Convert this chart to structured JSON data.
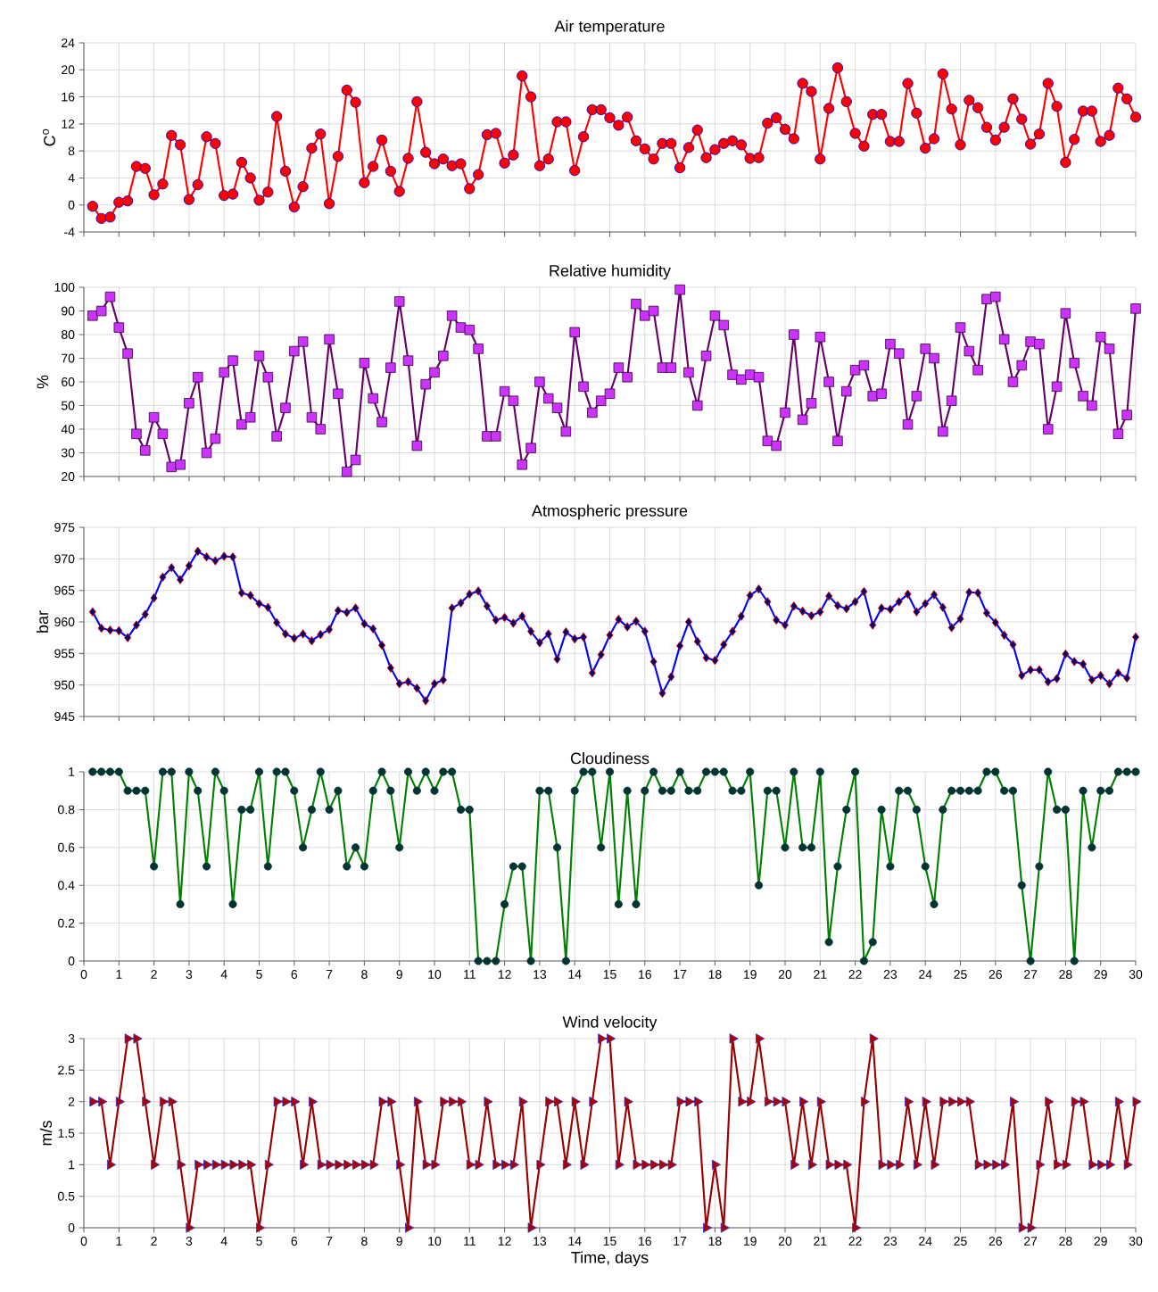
{
  "chart_data": [
    {
      "type": "line",
      "title": "Air temperature",
      "ylabel": "C$^{o}$",
      "grid": true,
      "marker": "circle",
      "tick_labels": "y",
      "x": [
        0.25,
        0.5,
        0.75,
        1,
        1.25,
        1.5,
        1.75,
        2,
        2.25,
        2.5,
        2.75,
        3,
        3.25,
        3.5,
        3.75,
        4,
        4.25,
        4.5,
        4.75,
        5,
        5.25,
        5.5,
        5.75,
        6,
        6.25,
        6.5,
        6.75,
        7,
        7.25,
        7.5,
        7.75,
        8,
        8.25,
        8.5,
        8.75,
        9,
        9.25,
        9.5,
        9.75,
        10,
        10.25,
        10.5,
        10.75,
        11,
        11.25,
        11.5,
        11.75,
        12,
        12.25,
        12.5,
        12.75,
        13,
        13.25,
        13.5,
        13.75,
        14,
        14.25,
        14.5,
        14.75,
        15,
        15.25,
        15.5,
        15.75,
        16,
        16.25,
        16.5,
        16.75,
        17,
        17.25,
        17.5,
        17.75,
        18,
        18.25,
        18.5,
        18.75,
        19,
        19.25,
        19.5,
        19.75,
        20,
        20.25,
        20.5,
        20.75,
        21,
        21.25,
        21.5,
        21.75,
        22,
        22.25,
        22.5,
        22.75,
        23,
        23.25,
        23.5,
        23.75,
        24,
        24.25,
        24.5,
        24.75,
        25,
        25.25,
        25.5,
        25.75,
        26,
        26.25,
        26.5,
        26.75,
        27,
        27.25,
        27.5,
        27.75,
        28,
        28.25,
        28.5,
        28.75,
        29,
        29.25,
        29.5,
        29.75,
        30
      ],
      "xlim": [
        0,
        30
      ],
      "xticks": [
        0,
        1,
        2,
        3,
        4,
        5,
        6,
        7,
        8,
        9,
        10,
        11,
        12,
        13,
        14,
        15,
        16,
        17,
        18,
        19,
        20,
        21,
        22,
        23,
        24,
        25,
        26,
        27,
        28,
        29,
        30
      ],
      "ylim": [
        -4,
        24
      ],
      "yticks": [
        -4,
        0,
        4,
        8,
        12,
        16,
        20,
        24
      ],
      "series": [
        {
          "color": "#ff0000",
          "values": [
            -0.2,
            -2,
            -1.8,
            0.4,
            0.6,
            5.7,
            5.4,
            1.5,
            3.1,
            10.3,
            8.9,
            0.8,
            3.0,
            10.1,
            9.1,
            1.4,
            1.6,
            6.3,
            4.0,
            0.7,
            1.9,
            13.1,
            5.0,
            -0.3,
            2.7,
            8.4,
            10.5,
            0.2,
            7.2,
            17.0,
            15.2,
            3.3,
            5.7,
            9.6,
            5.0,
            2.0,
            6.9,
            15.3,
            7.8,
            6.1,
            6.8,
            5.8,
            6.1,
            2.4,
            4.5,
            10.4,
            10.6,
            6.2,
            7.4,
            19.1,
            16.0,
            5.8,
            6.8,
            12.3,
            12.3,
            5.1,
            10.1,
            14.1,
            14.1,
            12.9,
            11.8,
            13.0,
            9.5,
            8.3,
            6.8,
            9.1,
            9.1,
            5.5,
            8.5,
            11.1,
            7.0,
            8.2,
            9.1,
            9.5,
            8.9,
            6.9,
            7.0,
            12.1,
            12.9,
            11.2,
            9.8,
            18.0,
            16.8,
            6.8,
            14.3,
            20.3,
            15.3,
            10.6,
            8.7,
            13.4,
            13.4,
            9.4,
            9.4,
            18.0,
            13.6,
            8.4,
            9.8,
            19.4,
            14.2,
            8.9,
            15.5,
            14.4,
            11.5,
            9.6,
            11.5,
            15.7,
            12.7,
            9.0,
            10.5,
            18.0,
            14.6,
            6.3,
            9.7,
            13.9,
            13.9,
            9.4,
            10.3,
            17.3,
            15.7,
            13.0
          ]
        }
      ]
    },
    {
      "type": "line",
      "title": "Relative humidity",
      "ylabel": "%",
      "grid": true,
      "marker": "square",
      "tick_labels": "y",
      "x": [
        0.25,
        0.5,
        0.75,
        1,
        1.25,
        1.5,
        1.75,
        2,
        2.25,
        2.5,
        2.75,
        3,
        3.25,
        3.5,
        3.75,
        4,
        4.25,
        4.5,
        4.75,
        5,
        5.25,
        5.5,
        5.75,
        6,
        6.25,
        6.5,
        6.75,
        7,
        7.25,
        7.5,
        7.75,
        8,
        8.25,
        8.5,
        8.75,
        9,
        9.25,
        9.5,
        9.75,
        10,
        10.25,
        10.5,
        10.75,
        11,
        11.25,
        11.5,
        11.75,
        12,
        12.25,
        12.5,
        12.75,
        13,
        13.25,
        13.5,
        13.75,
        14,
        14.25,
        14.5,
        14.75,
        15,
        15.25,
        15.5,
        15.75,
        16,
        16.25,
        16.5,
        16.75,
        17,
        17.25,
        17.5,
        17.75,
        18,
        18.25,
        18.5,
        18.75,
        19,
        19.25,
        19.5,
        19.75,
        20,
        20.25,
        20.5,
        20.75,
        21,
        21.25,
        21.5,
        21.75,
        22,
        22.25,
        22.5,
        22.75,
        23,
        23.25,
        23.5,
        23.75,
        24,
        24.25,
        24.5,
        24.75,
        25,
        25.25,
        25.5,
        25.75,
        26,
        26.25,
        26.5,
        26.75,
        27,
        27.25,
        27.5,
        27.75,
        28,
        28.25,
        28.5,
        28.75,
        29,
        29.25,
        29.5,
        29.75,
        30
      ],
      "xlim": [
        0,
        30
      ],
      "xticks": [
        0,
        1,
        2,
        3,
        4,
        5,
        6,
        7,
        8,
        9,
        10,
        11,
        12,
        13,
        14,
        15,
        16,
        17,
        18,
        19,
        20,
        21,
        22,
        23,
        24,
        25,
        26,
        27,
        28,
        29,
        30
      ],
      "ylim": [
        20,
        100
      ],
      "yticks": [
        20,
        30,
        40,
        50,
        60,
        70,
        80,
        90,
        100
      ],
      "series": [
        {
          "color": "#660066",
          "values": [
            88,
            90,
            96,
            83,
            72,
            38,
            31,
            45,
            38,
            24,
            25,
            51,
            62,
            30,
            36,
            64,
            69,
            42,
            45,
            71,
            62,
            37,
            49,
            73,
            77,
            45,
            40,
            78,
            55,
            22,
            27,
            68,
            53,
            43,
            66,
            94,
            69,
            33,
            59,
            64,
            71,
            88,
            83,
            82,
            74,
            37,
            37,
            56,
            52,
            25,
            32,
            60,
            53,
            49,
            39,
            81,
            58,
            47,
            52,
            55,
            66,
            62,
            93,
            88,
            90,
            66,
            66,
            99,
            64,
            50,
            71,
            88,
            84,
            63,
            61,
            63,
            62,
            35,
            33,
            47,
            80,
            44,
            51,
            79,
            60,
            35,
            56,
            65,
            67,
            54,
            55,
            76,
            72,
            42,
            54,
            74,
            70,
            39,
            52,
            83,
            73,
            65,
            95,
            96,
            78,
            60,
            67,
            77,
            76,
            40,
            58,
            89,
            68,
            54,
            50,
            79,
            74,
            38,
            46,
            91
          ]
        }
      ]
    },
    {
      "type": "line",
      "title": "Atmospheric pressure",
      "ylabel": "bar",
      "grid": true,
      "marker": "diamond",
      "tick_labels": "y",
      "x": [
        0.25,
        0.5,
        0.75,
        1,
        1.25,
        1.5,
        1.75,
        2,
        2.25,
        2.5,
        2.75,
        3,
        3.25,
        3.5,
        3.75,
        4,
        4.25,
        4.5,
        4.75,
        5,
        5.25,
        5.5,
        5.75,
        6,
        6.25,
        6.5,
        6.75,
        7,
        7.25,
        7.5,
        7.75,
        8,
        8.25,
        8.5,
        8.75,
        9,
        9.25,
        9.5,
        9.75,
        10,
        10.25,
        10.5,
        10.75,
        11,
        11.25,
        11.5,
        11.75,
        12,
        12.25,
        12.5,
        12.75,
        13,
        13.25,
        13.5,
        13.75,
        14,
        14.25,
        14.5,
        14.75,
        15,
        15.25,
        15.5,
        15.75,
        16,
        16.25,
        16.5,
        16.75,
        17,
        17.25,
        17.5,
        17.75,
        18,
        18.25,
        18.5,
        18.75,
        19,
        19.25,
        19.5,
        19.75,
        20,
        20.25,
        20.5,
        20.75,
        21,
        21.25,
        21.5,
        21.75,
        22,
        22.25,
        22.5,
        22.75,
        23,
        23.25,
        23.5,
        23.75,
        24,
        24.25,
        24.5,
        24.75,
        25,
        25.25,
        25.5,
        25.75,
        26,
        26.25,
        26.5,
        26.75,
        27,
        27.25,
        27.5,
        27.75,
        28,
        28.25,
        28.5,
        28.75,
        29,
        29.25,
        29.5,
        29.75,
        30
      ],
      "xlim": [
        0,
        30
      ],
      "xticks": [
        0,
        1,
        2,
        3,
        4,
        5,
        6,
        7,
        8,
        9,
        10,
        11,
        12,
        13,
        14,
        15,
        16,
        17,
        18,
        19,
        20,
        21,
        22,
        23,
        24,
        25,
        26,
        27,
        28,
        29,
        30
      ],
      "ylim": [
        945,
        975
      ],
      "yticks": [
        945,
        950,
        955,
        960,
        965,
        970,
        975
      ],
      "series": [
        {
          "color": "#0000ff",
          "values": [
            961.6,
            959.0,
            958.7,
            958.6,
            957.5,
            959.5,
            961.2,
            963.8,
            967.1,
            968.6,
            966.7,
            968.9,
            971.2,
            970.3,
            969.7,
            970.4,
            970.3,
            964.6,
            964.2,
            962.9,
            962.3,
            959.9,
            958.1,
            957.4,
            958.1,
            957.0,
            958.0,
            958.8,
            961.8,
            961.5,
            962.2,
            959.7,
            958.9,
            956.3,
            952.7,
            950.2,
            950.5,
            949.5,
            947.5,
            950.2,
            950.8,
            962.2,
            963.0,
            964.4,
            964.9,
            962.5,
            960.3,
            960.7,
            959.8,
            960.9,
            958.5,
            956.7,
            958.1,
            954.1,
            958.4,
            957.3,
            957.6,
            951.9,
            954.8,
            957.9,
            960.4,
            959.2,
            960.1,
            958.5,
            953.7,
            948.7,
            951.3,
            956.2,
            960.0,
            956.9,
            954.3,
            953.9,
            956.4,
            958.5,
            960.9,
            964.2,
            965.2,
            963.2,
            960.3,
            959.5,
            962.5,
            961.7,
            961.0,
            961.6,
            964.1,
            962.6,
            962.1,
            963.2,
            964.8,
            959.5,
            962.2,
            962.0,
            963.2,
            964.4,
            961.6,
            962.9,
            964.3,
            962.3,
            959.1,
            960.5,
            964.7,
            964.6,
            961.4,
            959.9,
            957.9,
            956.4,
            951.5,
            952.4,
            952.4,
            950.5,
            951.0,
            954.9,
            953.7,
            953.3,
            950.8,
            951.5,
            950.2,
            951.9,
            951.1,
            957.6
          ]
        }
      ]
    },
    {
      "type": "line",
      "title": "Cloudiness",
      "grid": true,
      "marker": "circle",
      "x": [
        0.25,
        0.5,
        0.75,
        1,
        1.25,
        1.5,
        1.75,
        2,
        2.25,
        2.5,
        2.75,
        3,
        3.25,
        3.5,
        3.75,
        4,
        4.25,
        4.5,
        4.75,
        5,
        5.25,
        5.5,
        5.75,
        6,
        6.25,
        6.5,
        6.75,
        7,
        7.25,
        7.5,
        7.75,
        8,
        8.25,
        8.5,
        8.75,
        9,
        9.25,
        9.5,
        9.75,
        10,
        10.25,
        10.5,
        10.75,
        11,
        11.25,
        11.5,
        11.75,
        12,
        12.25,
        12.5,
        12.75,
        13,
        13.25,
        13.5,
        13.75,
        14,
        14.25,
        14.5,
        14.75,
        15,
        15.25,
        15.5,
        15.75,
        16,
        16.25,
        16.5,
        16.75,
        17,
        17.25,
        17.5,
        17.75,
        18,
        18.25,
        18.5,
        18.75,
        19,
        19.25,
        19.5,
        19.75,
        20,
        20.25,
        20.5,
        20.75,
        21,
        21.25,
        21.5,
        21.75,
        22,
        22.25,
        22.5,
        22.75,
        23,
        23.25,
        23.5,
        23.75,
        24,
        24.25,
        24.5,
        24.75,
        25,
        25.25,
        25.5,
        25.75,
        26,
        26.25,
        26.5,
        26.75,
        27,
        27.25,
        27.5,
        27.75,
        28,
        28.25,
        28.5,
        28.75,
        29,
        29.25,
        29.5,
        29.75,
        30
      ],
      "xlim": [
        0,
        30
      ],
      "xticks": [
        0,
        1,
        2,
        3,
        4,
        5,
        6,
        7,
        8,
        9,
        10,
        11,
        12,
        13,
        14,
        15,
        16,
        17,
        18,
        19,
        20,
        21,
        22,
        23,
        24,
        25,
        26,
        27,
        28,
        29,
        30
      ],
      "ylim": [
        0,
        1
      ],
      "yticks": [
        0,
        0.2,
        0.4,
        0.6,
        0.8,
        1
      ],
      "series": [
        {
          "color": "#008000",
          "values": [
            1,
            1,
            1,
            1,
            0.9,
            0.9,
            0.9,
            0.5,
            1,
            1,
            0.3,
            1,
            0.9,
            0.5,
            1,
            0.9,
            0.3,
            0.8,
            0.8,
            1,
            0.5,
            1,
            1,
            0.9,
            0.6,
            0.8,
            1,
            0.8,
            0.9,
            0.5,
            0.6,
            0.5,
            0.9,
            1,
            0.9,
            0.6,
            1,
            0.9,
            1,
            0.9,
            1,
            1,
            0.8,
            0.8,
            0,
            0,
            0,
            0.3,
            0.5,
            0.5,
            0,
            0.9,
            0.9,
            0.6,
            0,
            0.9,
            1,
            1,
            0.6,
            1,
            0.3,
            0.9,
            0.3,
            0.9,
            1,
            0.9,
            0.9,
            1,
            0.9,
            0.9,
            1,
            1,
            1,
            0.9,
            0.9,
            1,
            0.4,
            0.9,
            0.9,
            0.6,
            1,
            0.6,
            0.6,
            1,
            0.1,
            0.5,
            0.8,
            1,
            0,
            0.1,
            0.8,
            0.5,
            0.9,
            0.9,
            0.8,
            0.5,
            0.3,
            0.8,
            0.9,
            0.9,
            0.9,
            0.9,
            1,
            1,
            0.9,
            0.9,
            0.4,
            0,
            0.5,
            1,
            0.8,
            0.8,
            0,
            0.9,
            0.6,
            0.9,
            0.9,
            1,
            1,
            1
          ]
        }
      ]
    },
    {
      "type": "line",
      "title": "Wind velocity",
      "xlabel": "Time, days",
      "ylabel": "m/s",
      "grid": true,
      "marker": "triangle",
      "x": [
        0.25,
        0.5,
        0.75,
        1,
        1.25,
        1.5,
        1.75,
        2,
        2.25,
        2.5,
        2.75,
        3,
        3.25,
        3.5,
        3.75,
        4,
        4.25,
        4.5,
        4.75,
        5,
        5.25,
        5.5,
        5.75,
        6,
        6.25,
        6.5,
        6.75,
        7,
        7.25,
        7.5,
        7.75,
        8,
        8.25,
        8.5,
        8.75,
        9,
        9.25,
        9.5,
        9.75,
        10,
        10.25,
        10.5,
        10.75,
        11,
        11.25,
        11.5,
        11.75,
        12,
        12.25,
        12.5,
        12.75,
        13,
        13.25,
        13.5,
        13.75,
        14,
        14.25,
        14.5,
        14.75,
        15,
        15.25,
        15.5,
        15.75,
        16,
        16.25,
        16.5,
        16.75,
        17,
        17.25,
        17.5,
        17.75,
        18,
        18.25,
        18.5,
        18.75,
        19,
        19.25,
        19.5,
        19.75,
        20,
        20.25,
        20.5,
        20.75,
        21,
        21.25,
        21.5,
        21.75,
        22,
        22.25,
        22.5,
        22.75,
        23,
        23.25,
        23.5,
        23.75,
        24,
        24.25,
        24.5,
        24.75,
        25,
        25.25,
        25.5,
        25.75,
        26,
        26.25,
        26.5,
        26.75,
        27,
        27.25,
        27.5,
        27.75,
        28,
        28.25,
        28.5,
        28.75,
        29,
        29.25,
        29.5,
        29.75,
        30
      ],
      "xlim": [
        0,
        30
      ],
      "xticks": [
        0,
        1,
        2,
        3,
        4,
        5,
        6,
        7,
        8,
        9,
        10,
        11,
        12,
        13,
        14,
        15,
        16,
        17,
        18,
        19,
        20,
        21,
        22,
        23,
        24,
        25,
        26,
        27,
        28,
        29,
        30
      ],
      "ylim": [
        0,
        3
      ],
      "yticks": [
        0,
        0.5,
        1,
        1.5,
        2,
        2.5,
        3
      ],
      "series": [
        {
          "color": "#990000",
          "values": [
            2,
            2,
            1,
            2,
            3,
            3,
            2,
            1,
            2,
            2,
            1,
            0,
            1,
            1,
            1,
            1,
            1,
            1,
            1,
            0,
            1,
            2,
            2,
            2,
            1,
            2,
            1,
            1,
            1,
            1,
            1,
            1,
            1,
            2,
            2,
            1,
            0,
            2,
            1,
            1,
            2,
            2,
            2,
            1,
            1,
            2,
            1,
            1,
            1,
            2,
            0,
            1,
            2,
            2,
            1,
            2,
            1,
            2,
            3,
            3,
            1,
            2,
            1,
            1,
            1,
            1,
            1,
            2,
            2,
            2,
            0,
            1,
            0,
            3,
            2,
            2,
            3,
            2,
            2,
            2,
            1,
            2,
            1,
            2,
            1,
            1,
            1,
            0,
            2,
            3,
            1,
            1,
            1,
            2,
            1,
            2,
            1,
            2,
            2,
            2,
            2,
            1,
            1,
            1,
            1,
            2,
            0,
            0,
            1,
            2,
            1,
            1,
            2,
            2,
            1,
            1,
            1,
            2,
            1,
            2
          ]
        }
      ]
    }
  ]
}
